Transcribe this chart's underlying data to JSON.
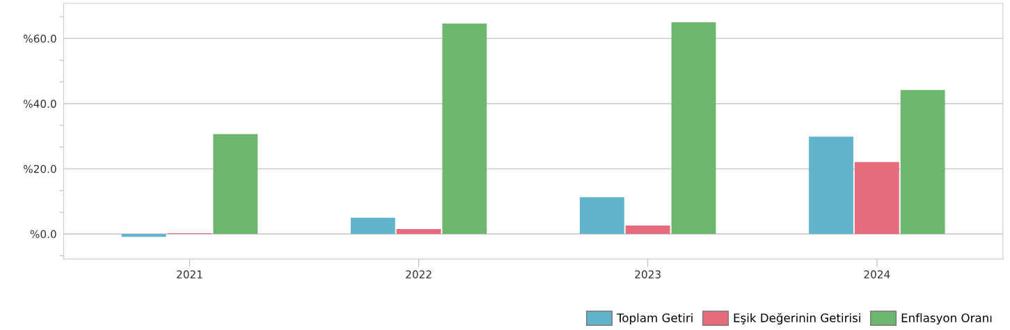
{
  "chart_data": {
    "type": "bar",
    "categories": [
      "2021",
      "2022",
      "2023",
      "2024"
    ],
    "series": [
      {
        "name": "Toplam Getiri",
        "color": "#62b4cc",
        "values": [
          -0.9,
          5.0,
          11.3,
          29.9
        ]
      },
      {
        "name": "Eşik Değerinin Getirisi",
        "color": "#e56b7d",
        "values": [
          0.2,
          1.5,
          2.6,
          22.1
        ]
      },
      {
        "name": "Enflasyon Oranı",
        "color": "#6db66d",
        "values": [
          30.7,
          64.6,
          65.0,
          44.2
        ]
      }
    ],
    "ylim": [
      -7.7,
      70.8
    ],
    "yticks": [
      {
        "value": -6.67,
        "label": null
      },
      {
        "value": 0,
        "label": "%0.0"
      },
      {
        "value": 6.67,
        "label": null
      },
      {
        "value": 13.33,
        "label": null
      },
      {
        "value": 20,
        "label": "%20.0"
      },
      {
        "value": 26.67,
        "label": null
      },
      {
        "value": 33.33,
        "label": null
      },
      {
        "value": 40,
        "label": "%40.0"
      },
      {
        "value": 46.67,
        "label": null
      },
      {
        "value": 53.33,
        "label": null
      },
      {
        "value": 60,
        "label": "%60.0"
      },
      {
        "value": 66.67,
        "label": null
      }
    ],
    "grid": "y",
    "legend": "bottom right"
  }
}
